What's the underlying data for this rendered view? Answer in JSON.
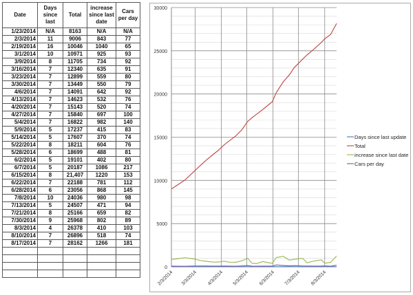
{
  "table": {
    "headers": [
      "Date",
      "Days since last",
      "Total",
      "increase since last date",
      "Cars per day"
    ],
    "rows": [
      [
        "1/23/2014",
        "N/A",
        "8163",
        "N/A",
        "N/A"
      ],
      [
        "2/3/2014",
        "11",
        "9006",
        "843",
        "77"
      ],
      [
        "2/19/2014",
        "16",
        "10046",
        "1040",
        "65"
      ],
      [
        "3/1/2014",
        "10",
        "10971",
        "925",
        "93"
      ],
      [
        "3/9/2014",
        "8",
        "11705",
        "734",
        "92"
      ],
      [
        "3/16/2014",
        "7",
        "12340",
        "635",
        "91"
      ],
      [
        "3/23/2014",
        "7",
        "12899",
        "559",
        "80"
      ],
      [
        "3/30/2014",
        "7",
        "13449",
        "550",
        "79"
      ],
      [
        "4/6/2014",
        "7",
        "14091",
        "642",
        "92"
      ],
      [
        "4/13/2014",
        "7",
        "14623",
        "532",
        "76"
      ],
      [
        "4/20/2014",
        "7",
        "15143",
        "520",
        "74"
      ],
      [
        "4/27/2014",
        "7",
        "15840",
        "697",
        "100"
      ],
      [
        "5/4/2014",
        "7",
        "16822",
        "982",
        "140"
      ],
      [
        "5/9/2014",
        "5",
        "17237",
        "415",
        "83"
      ],
      [
        "5/14/2014",
        "5",
        "17607",
        "370",
        "74"
      ],
      [
        "5/22/2014",
        "8",
        "18211",
        "604",
        "76"
      ],
      [
        "5/28/2014",
        "6",
        "18699",
        "488",
        "81"
      ],
      [
        "6/2/2014",
        "5",
        "19101",
        "402",
        "80"
      ],
      [
        "6/7/2014",
        "5",
        "20187",
        "1086",
        "217"
      ],
      [
        "6/15/2014",
        "8",
        "21,407",
        "1220",
        "153"
      ],
      [
        "6/22/2014",
        "7",
        "22188",
        "781",
        "112"
      ],
      [
        "6/28/2014",
        "6",
        "23056",
        "868",
        "145"
      ],
      [
        "7/8/2014",
        "10",
        "24036",
        "980",
        "98"
      ],
      [
        "7/13/2014",
        "5",
        "24507",
        "471",
        "94"
      ],
      [
        "7/21/2014",
        "8",
        "25166",
        "659",
        "82"
      ],
      [
        "7/30/2014",
        "9",
        "25968",
        "802",
        "89"
      ],
      [
        "8/3/2014",
        "4",
        "26378",
        "410",
        "103"
      ],
      [
        "8/10/2014",
        "7",
        "26896",
        "518",
        "74"
      ],
      [
        "8/17/2014",
        "7",
        "28162",
        "1266",
        "181"
      ]
    ],
    "empty_rows": 4
  },
  "chart_data": {
    "type": "line",
    "x": [
      "2/3/2014",
      "2/19/2014",
      "3/1/2014",
      "3/9/2014",
      "3/16/2014",
      "3/23/2014",
      "3/30/2014",
      "4/6/2014",
      "4/13/2014",
      "4/20/2014",
      "4/27/2014",
      "5/4/2014",
      "5/9/2014",
      "5/14/2014",
      "5/22/2014",
      "5/28/2014",
      "6/2/2014",
      "6/7/2014",
      "6/15/2014",
      "6/22/2014",
      "6/28/2014",
      "7/8/2014",
      "7/13/2014",
      "7/21/2014",
      "7/30/2014",
      "8/3/2014",
      "8/10/2014",
      "8/17/2014"
    ],
    "series": [
      {
        "name": "Days since last update",
        "color": "#4f81bd",
        "values": [
          11,
          16,
          10,
          8,
          7,
          7,
          7,
          7,
          7,
          7,
          7,
          7,
          5,
          5,
          8,
          6,
          5,
          5,
          8,
          7,
          6,
          10,
          5,
          8,
          9,
          4,
          7,
          7
        ]
      },
      {
        "name": "Total",
        "color": "#c0504d",
        "values": [
          9006,
          10046,
          10971,
          11705,
          12340,
          12899,
          13449,
          14091,
          14623,
          15143,
          15840,
          16822,
          17237,
          17607,
          18211,
          18699,
          19101,
          20187,
          21407,
          22188,
          23056,
          24036,
          24507,
          25166,
          25968,
          26378,
          26896,
          28162
        ]
      },
      {
        "name": "increase since last date",
        "color": "#9bbb59",
        "values": [
          843,
          1040,
          925,
          734,
          635,
          559,
          550,
          642,
          532,
          520,
          697,
          982,
          415,
          370,
          604,
          488,
          402,
          1086,
          1220,
          781,
          868,
          980,
          471,
          659,
          802,
          410,
          518,
          1266
        ]
      },
      {
        "name": "Cars per day",
        "color": "#8064a2",
        "values": [
          77,
          65,
          93,
          92,
          91,
          80,
          79,
          92,
          76,
          74,
          100,
          140,
          83,
          74,
          76,
          81,
          80,
          217,
          153,
          112,
          145,
          98,
          94,
          82,
          89,
          103,
          74,
          181
        ]
      }
    ],
    "x_ticks": [
      "2/3/2014",
      "3/3/2014",
      "4/3/2014",
      "5/3/2014",
      "6/3/2014",
      "7/3/2014",
      "8/3/2014"
    ],
    "y_ticks": [
      0,
      5000,
      10000,
      15000,
      20000,
      25000,
      30000
    ],
    "ylim": [
      0,
      30000
    ],
    "grid": true,
    "legend": "right"
  }
}
